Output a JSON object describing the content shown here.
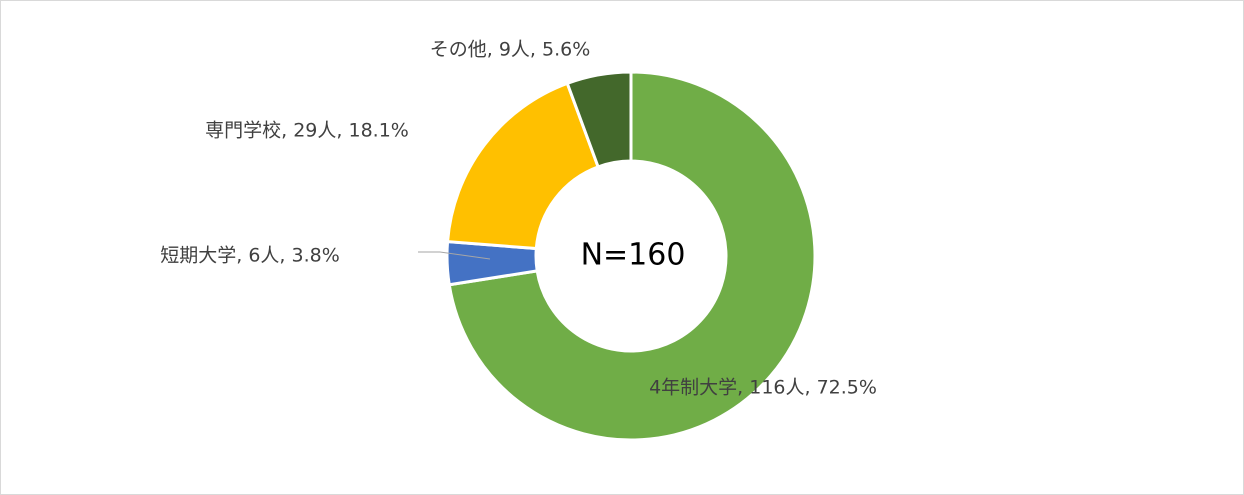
{
  "chart_data": {
    "type": "donut",
    "center_label": "N=160",
    "labels": [
      "4年制大学, 116人, 72.5%",
      "短期大学, 6人, 3.8%",
      "専門学校, 29人, 18.1%",
      "その他, 9人, 5.6%"
    ],
    "values": [
      116,
      6,
      29,
      9
    ],
    "colors": [
      "#70ad47",
      "#4472c4",
      "#ffc000",
      "#43682b"
    ]
  }
}
